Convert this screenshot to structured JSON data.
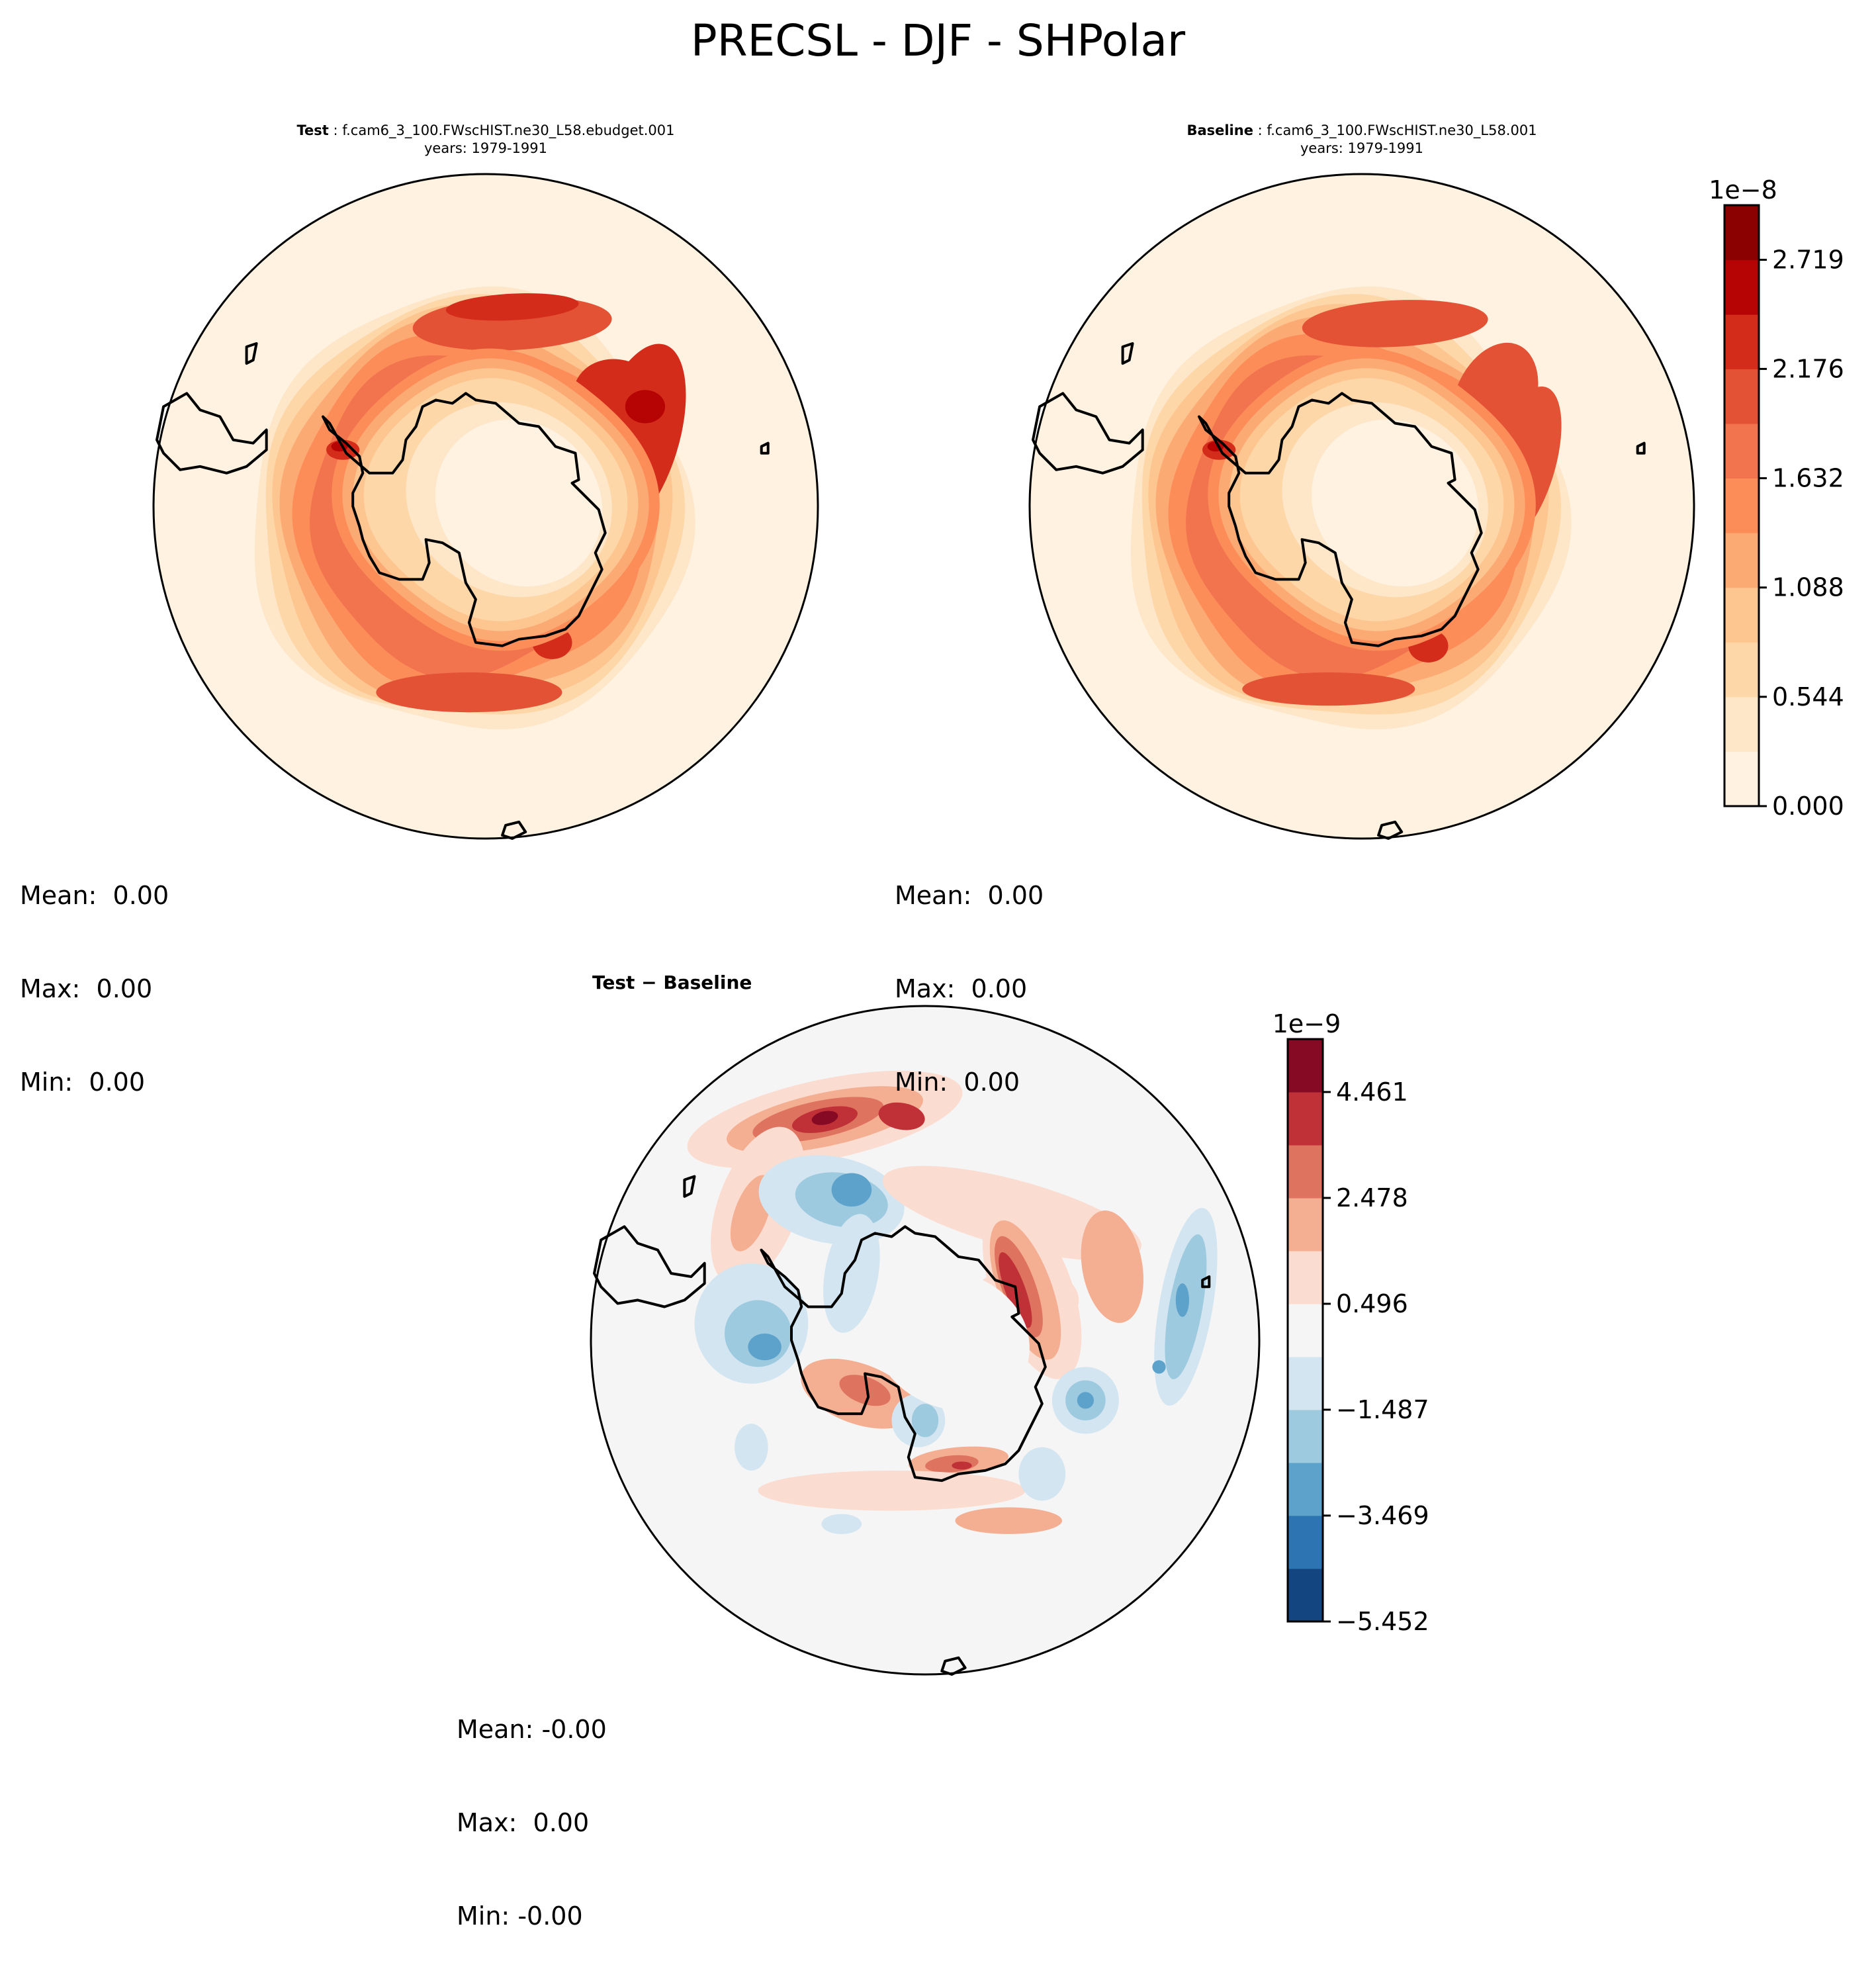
{
  "chart_data": [
    {
      "type": "heatmap",
      "panel": "test",
      "projection": "south-polar-stereographic",
      "title_bold": "Test",
      "title_rest": " : f.cam6_3_100.FWscHIST.ne30_L58.ebudget.001",
      "subtitle": "years: 1979-1991",
      "stats": {
        "mean": "0.00",
        "max": "0.00",
        "min": "0.00"
      },
      "colormap": "OrRd",
      "colorbar": "shared-top"
    },
    {
      "type": "heatmap",
      "panel": "baseline",
      "projection": "south-polar-stereographic",
      "title_bold": "Baseline",
      "title_rest": " : f.cam6_3_100.FWscHIST.ne30_L58.001",
      "subtitle": "years: 1979-1991",
      "stats": {
        "mean": "0.00",
        "max": "0.00",
        "min": "0.00"
      },
      "colormap": "OrRd",
      "colorbar": {
        "exponent_label": "1e−8",
        "min": 0.0,
        "max": 2.991,
        "levels": [
          0.0,
          0.272,
          0.544,
          0.816,
          1.088,
          1.36,
          1.632,
          1.904,
          2.176,
          2.447,
          2.719,
          2.991
        ],
        "tick_values": [
          0.0,
          0.544,
          1.088,
          1.632,
          2.176,
          2.719
        ],
        "tick_labels": [
          "0.000",
          "0.544",
          "1.088",
          "1.632",
          "2.176",
          "2.719"
        ],
        "colors": [
          "#fff2e1",
          "#fee6c9",
          "#fdd7a8",
          "#fdc590",
          "#fcaa74",
          "#fc8d59",
          "#f2744e",
          "#e35235",
          "#d42c1b",
          "#b60303",
          "#8b0000"
        ]
      }
    },
    {
      "type": "heatmap",
      "panel": "difference",
      "projection": "south-polar-stereographic",
      "title_bold": "Test − Baseline",
      "stats": {
        "mean": "-0.00",
        "max": " 0.00",
        "min": "-0.00"
      },
      "colormap": "RdBu_r",
      "colorbar": {
        "exponent_label": "1e−9",
        "min": -5.452,
        "max": 5.452,
        "levels": [
          -5.452,
          -4.461,
          -3.469,
          -2.478,
          -1.487,
          -0.496,
          0.496,
          1.487,
          2.478,
          3.469,
          4.461,
          5.452
        ],
        "tick_values": [
          -5.452,
          -3.469,
          -1.487,
          0.496,
          2.478,
          4.461
        ],
        "tick_labels": [
          "−5.452",
          "−3.469",
          "−1.487",
          "0.496",
          "2.478",
          "4.461"
        ],
        "colors": [
          "#134580",
          "#2c74b2",
          "#5ca2cb",
          "#9ecae0",
          "#d2e5f0",
          "#f5f5f5",
          "#fbdcd0",
          "#f4ae91",
          "#de735f",
          "#bf3137",
          "#870a24"
        ]
      }
    }
  ],
  "suptitle": "PRECSL - DJF - SHPolar",
  "labels": {
    "mean": "Mean:",
    "max": "Max:",
    "min": "Min:"
  }
}
